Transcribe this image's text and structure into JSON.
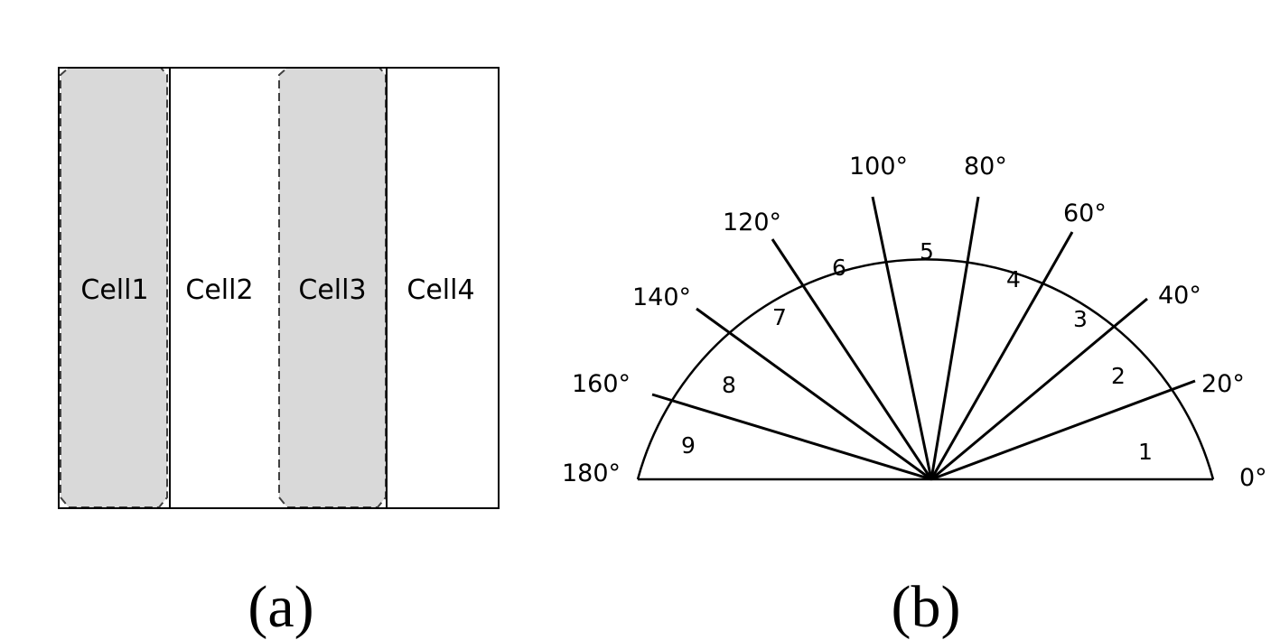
{
  "panel_a": {
    "caption": "(a)",
    "cells": [
      {
        "label": "Cell1",
        "shaded": true
      },
      {
        "label": "Cell2",
        "shaded": false
      },
      {
        "label": "Cell3",
        "shaded": true
      },
      {
        "label": "Cell4",
        "shaded": false
      }
    ],
    "colors": {
      "shaded_fill": "#d9d9d9",
      "outline": "#000000",
      "dashed_outline": "#404040"
    }
  },
  "panel_b": {
    "caption": "(b)",
    "angle_labels": [
      "0°",
      "20°",
      "40°",
      "60°",
      "80°",
      "100°",
      "120°",
      "140°",
      "160°",
      "180°"
    ],
    "sector_labels": [
      "1",
      "2",
      "3",
      "4",
      "5",
      "6",
      "7",
      "8",
      "9"
    ],
    "colors": {
      "line": "#000000"
    }
  }
}
